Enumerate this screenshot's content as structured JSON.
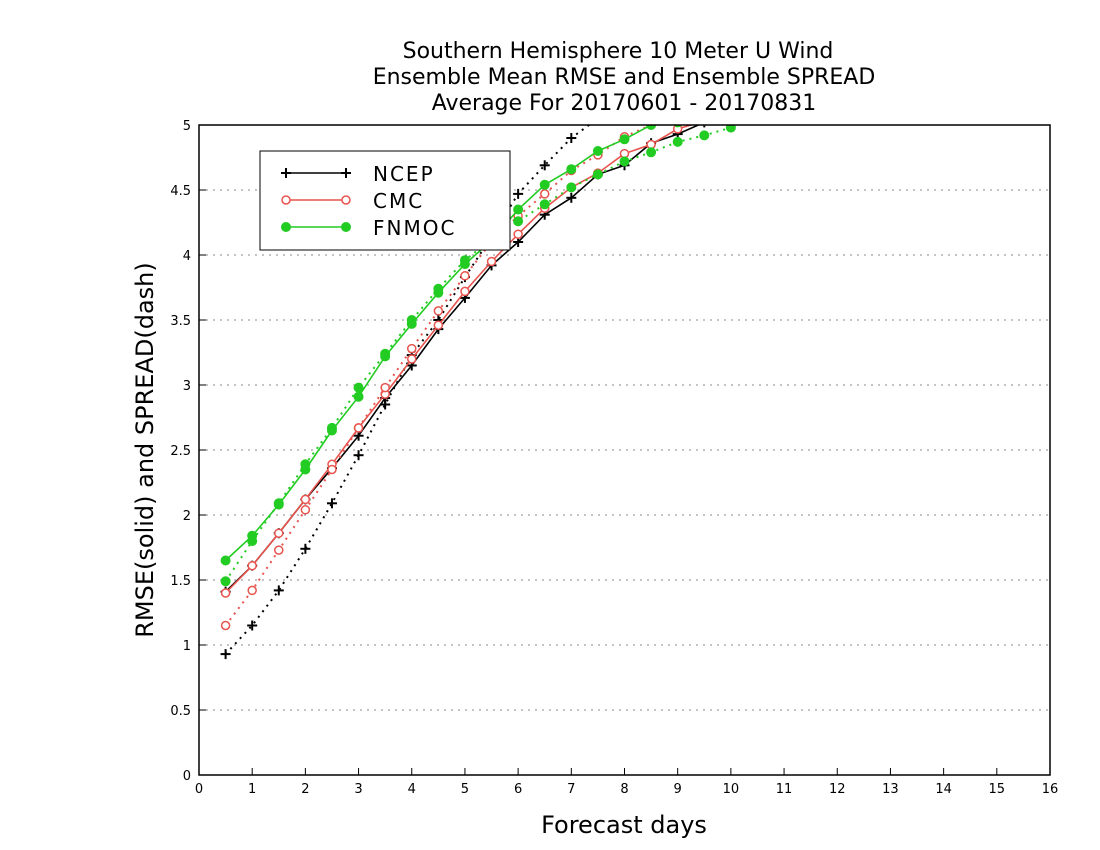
{
  "chart_data": {
    "type": "line",
    "title": [
      "Southern Hemisphere 10 Meter U Wind",
      "Ensemble Mean RMSE and Ensemble SPREAD",
      "Average For 20170601 - 20170831"
    ],
    "xlabel": "Forecast days",
    "ylabel": "RMSE(solid) and SPREAD(dash)",
    "xlim": [
      0,
      16
    ],
    "ylim": [
      0,
      5
    ],
    "xticks": [
      "0",
      "1",
      "2",
      "3",
      "4",
      "5",
      "6",
      "7",
      "8",
      "9",
      "10",
      "11",
      "12",
      "13",
      "14",
      "15",
      "16"
    ],
    "yticks": [
      "0",
      "0.5",
      "1",
      "1.5",
      "2",
      "2.5",
      "3",
      "3.5",
      "4",
      "4.5",
      "5"
    ],
    "grid": "horizontal dotted",
    "legend_position": "top-left",
    "series": [
      {
        "name": "NCEP",
        "color": "#000000",
        "marker": "plus",
        "rmse": [
          [
            0.5,
            1.41
          ],
          [
            1,
            1.61
          ],
          [
            1.5,
            1.86
          ],
          [
            2,
            2.12
          ],
          [
            2.5,
            2.36
          ],
          [
            3,
            2.61
          ],
          [
            3.5,
            2.9
          ],
          [
            4,
            3.15
          ],
          [
            4.5,
            3.43
          ],
          [
            5,
            3.67
          ],
          [
            5.5,
            3.92
          ],
          [
            6,
            4.1
          ],
          [
            6.5,
            4.31
          ],
          [
            7,
            4.44
          ],
          [
            7.5,
            4.62
          ],
          [
            8,
            4.69
          ],
          [
            8.5,
            4.86
          ],
          [
            9,
            4.93
          ],
          [
            9.5,
            5.02
          ]
        ],
        "spread": [
          [
            0.5,
            0.93
          ],
          [
            1,
            1.15
          ],
          [
            1.5,
            1.42
          ],
          [
            2,
            1.74
          ],
          [
            2.5,
            2.09
          ],
          [
            3,
            2.46
          ],
          [
            3.5,
            2.85
          ],
          [
            4,
            3.23
          ],
          [
            4.5,
            3.5
          ],
          [
            5,
            3.83
          ],
          [
            5.5,
            4.14
          ],
          [
            6,
            4.47
          ],
          [
            6.5,
            4.69
          ],
          [
            7,
            4.9
          ],
          [
            7.5,
            5.05
          ]
        ]
      },
      {
        "name": "CMC",
        "color": "#e8534e",
        "marker": "open-circle",
        "rmse": [
          [
            0.5,
            1.4
          ],
          [
            1,
            1.61
          ],
          [
            1.5,
            1.86
          ],
          [
            2,
            2.12
          ],
          [
            2.5,
            2.39
          ],
          [
            3,
            2.67
          ],
          [
            3.5,
            2.93
          ],
          [
            4,
            3.2
          ],
          [
            4.5,
            3.46
          ],
          [
            5,
            3.72
          ],
          [
            5.5,
            3.95
          ],
          [
            6,
            4.16
          ],
          [
            6.5,
            4.36
          ],
          [
            7,
            4.52
          ],
          [
            7.5,
            4.63
          ],
          [
            8,
            4.78
          ],
          [
            8.5,
            4.85
          ],
          [
            9,
            4.97
          ],
          [
            9.5,
            5.03
          ]
        ],
        "spread": [
          [
            0.5,
            1.15
          ],
          [
            1,
            1.42
          ],
          [
            1.5,
            1.73
          ],
          [
            2,
            2.04
          ],
          [
            2.5,
            2.35
          ],
          [
            3,
            2.67
          ],
          [
            3.5,
            2.98
          ],
          [
            4,
            3.28
          ],
          [
            4.5,
            3.57
          ],
          [
            5,
            3.84
          ],
          [
            5.5,
            4.1
          ],
          [
            6,
            4.3
          ],
          [
            6.5,
            4.47
          ],
          [
            7,
            4.65
          ],
          [
            7.5,
            4.77
          ],
          [
            8,
            4.91
          ],
          [
            8.5,
            5.0
          ],
          [
            9,
            5.02
          ]
        ]
      },
      {
        "name": "FNMOC",
        "color": "#22cc22",
        "marker": "filled-circle",
        "rmse": [
          [
            0.5,
            1.65
          ],
          [
            1,
            1.84
          ],
          [
            1.5,
            2.08
          ],
          [
            2,
            2.35
          ],
          [
            2.5,
            2.65
          ],
          [
            3,
            2.91
          ],
          [
            3.5,
            3.22
          ],
          [
            4,
            3.47
          ],
          [
            4.5,
            3.71
          ],
          [
            5,
            3.93
          ],
          [
            5.5,
            4.11
          ],
          [
            6,
            4.35
          ],
          [
            6.5,
            4.54
          ],
          [
            7,
            4.66
          ],
          [
            7.5,
            4.8
          ],
          [
            8,
            4.89
          ],
          [
            8.5,
            5.0
          ],
          [
            9,
            5.02
          ]
        ],
        "spread": [
          [
            0.5,
            1.49
          ],
          [
            1,
            1.8
          ],
          [
            1.5,
            2.09
          ],
          [
            2,
            2.39
          ],
          [
            2.5,
            2.67
          ],
          [
            3,
            2.98
          ],
          [
            3.5,
            3.24
          ],
          [
            4,
            3.5
          ],
          [
            4.5,
            3.74
          ],
          [
            5,
            3.96
          ],
          [
            5.5,
            4.12
          ],
          [
            6,
            4.26
          ],
          [
            6.5,
            4.39
          ],
          [
            7,
            4.52
          ],
          [
            7.5,
            4.62
          ],
          [
            8,
            4.72
          ],
          [
            8.5,
            4.79
          ],
          [
            9,
            4.87
          ],
          [
            9.5,
            4.92
          ],
          [
            10,
            4.98
          ]
        ]
      }
    ]
  }
}
